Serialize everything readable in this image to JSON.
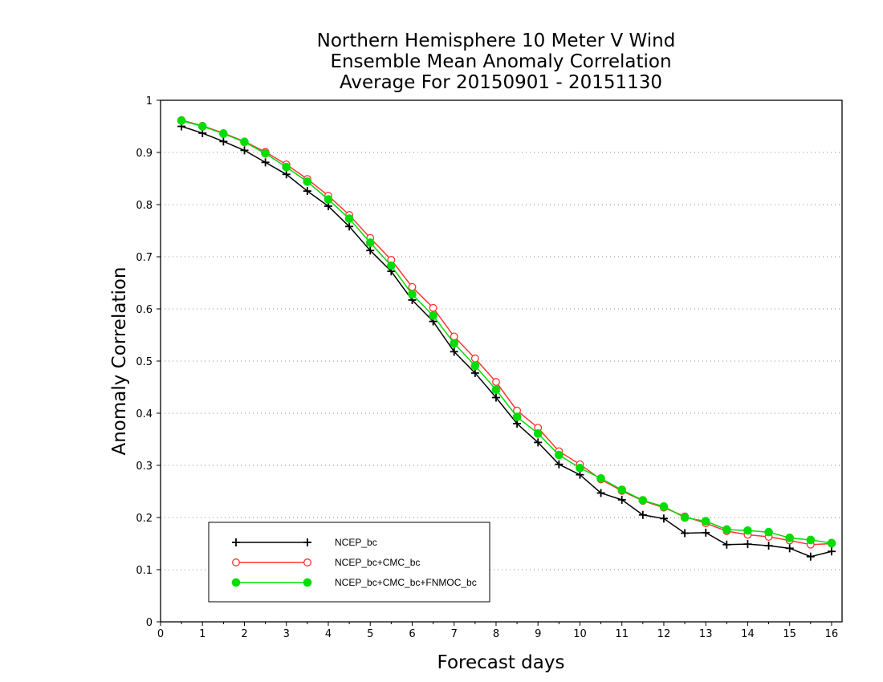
{
  "chart_data": {
    "type": "line",
    "title_lines": [
      "Northern Hemisphere 10 Meter V Wind",
      "Ensemble Mean Anomaly Correlation",
      "Average For 20150901 - 20151130"
    ],
    "xlabel": "Forecast days",
    "ylabel": "Anomaly Correlation",
    "xlim": [
      0,
      16.25
    ],
    "ylim": [
      0,
      1
    ],
    "x_ticks": [
      0,
      1,
      2,
      3,
      4,
      5,
      6,
      7,
      8,
      9,
      10,
      11,
      12,
      13,
      14,
      15,
      16
    ],
    "y_ticks": [
      0,
      0.1,
      0.2,
      0.3,
      0.4,
      0.5,
      0.6,
      0.7,
      0.8,
      0.9,
      1
    ],
    "y_tick_labels": [
      "0",
      "0.1",
      "0.2",
      "0.3",
      "0.4",
      "0.5",
      "0.6",
      "0.7",
      "0.8",
      "0.9",
      "1"
    ],
    "grid": "horizontal dotted",
    "legend_position": "bottom-left",
    "x": [
      0.5,
      1,
      1.5,
      2,
      2.5,
      3,
      3.5,
      4,
      4.5,
      5,
      5.5,
      6,
      6.5,
      7,
      7.5,
      8,
      8.5,
      9,
      9.5,
      10,
      10.5,
      11,
      11.5,
      12,
      12.5,
      13,
      13.5,
      14,
      14.5,
      15,
      15.5,
      16
    ],
    "series": [
      {
        "name": "NCEP_bc",
        "color": "#000000",
        "marker": "plus",
        "values": [
          0.95,
          0.937,
          0.921,
          0.904,
          0.881,
          0.858,
          0.826,
          0.797,
          0.758,
          0.712,
          0.672,
          0.617,
          0.576,
          0.518,
          0.477,
          0.43,
          0.38,
          0.344,
          0.302,
          0.282,
          0.247,
          0.234,
          0.205,
          0.198,
          0.17,
          0.171,
          0.148,
          0.149,
          0.146,
          0.141,
          0.125,
          0.135
        ]
      },
      {
        "name": "NCEP_bc+CMC_bc",
        "color": "#ff3333",
        "marker": "open-circle",
        "values": [
          0.962,
          0.951,
          0.937,
          0.921,
          0.901,
          0.877,
          0.849,
          0.817,
          0.78,
          0.736,
          0.694,
          0.642,
          0.602,
          0.547,
          0.505,
          0.46,
          0.405,
          0.372,
          0.327,
          0.302,
          0.273,
          0.251,
          0.232,
          0.219,
          0.202,
          0.189,
          0.174,
          0.167,
          0.163,
          0.156,
          0.148,
          0.15
        ]
      },
      {
        "name": "NCEP_bc+CMC_bc+FNMOC_bc",
        "color": "#00dd00",
        "marker": "filled-circle",
        "values": [
          0.961,
          0.95,
          0.936,
          0.92,
          0.898,
          0.872,
          0.844,
          0.81,
          0.773,
          0.727,
          0.683,
          0.628,
          0.587,
          0.534,
          0.491,
          0.445,
          0.393,
          0.361,
          0.32,
          0.295,
          0.275,
          0.253,
          0.233,
          0.221,
          0.2,
          0.193,
          0.177,
          0.175,
          0.172,
          0.161,
          0.157,
          0.151
        ]
      }
    ]
  }
}
